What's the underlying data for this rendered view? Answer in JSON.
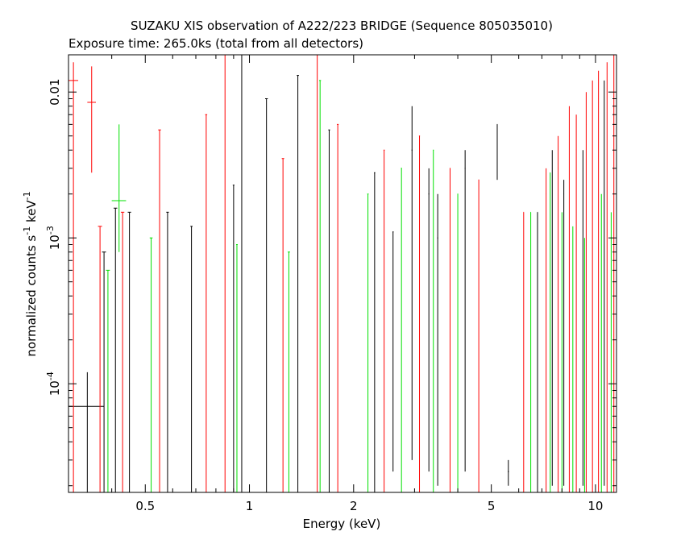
{
  "chart_data": {
    "type": "scatter",
    "title": "SUZAKU XIS observation of A222/223 BRIDGE (Sequence 805035010)",
    "subtitle": "Exposure time: 265.0ks (total from all detectors)",
    "xlabel": "Energy (keV)",
    "ylabel_main": "normalized counts s",
    "ylabel_sup1": "-1",
    "ylabel_mid": " keV",
    "ylabel_sup2": "-1",
    "x_scale": "log",
    "y_scale": "log",
    "xlim": [
      0.3,
      11.5
    ],
    "ylim": [
      1.8e-05,
      0.018
    ],
    "x_ticks": [
      {
        "value": 0.5,
        "label": "0.5"
      },
      {
        "value": 1,
        "label": "1"
      },
      {
        "value": 2,
        "label": "2"
      },
      {
        "value": 5,
        "label": "5"
      },
      {
        "value": 10,
        "label": "10"
      }
    ],
    "y_ticks": [
      {
        "value": 0.0001,
        "base": "10",
        "exp": "-4"
      },
      {
        "value": 0.001,
        "base": "10",
        "exp": "-3"
      },
      {
        "value": 0.01,
        "base": "0.01",
        "exp": ""
      }
    ],
    "grid": false,
    "legend": "none",
    "series": [
      {
        "color": "#000000",
        "points": [
          {
            "x": 0.34,
            "y": 7e-05,
            "xerr": [
              0.3,
              0.38
            ],
            "yerr": [
              1.8e-05,
              0.00012
            ]
          },
          {
            "x": 0.38,
            "y": 0.0008,
            "xerr": [
              0.375,
              0.385
            ],
            "yerr": [
              1.8e-05,
              0.0008
            ]
          },
          {
            "x": 0.41,
            "y": 0.0016,
            "xerr": [
              0.405,
              0.415
            ],
            "yerr": [
              1.8e-05,
              0.0016
            ]
          },
          {
            "x": 0.45,
            "y": 0.0015,
            "xerr": [
              0.445,
              0.455
            ],
            "yerr": [
              1.8e-05,
              0.0015
            ]
          },
          {
            "x": 0.58,
            "y": 0.0015,
            "xerr": [
              0.575,
              0.585
            ],
            "yerr": [
              1.8e-05,
              0.0015
            ]
          },
          {
            "x": 0.68,
            "y": 0.0012,
            "xerr": [
              0.675,
              0.685
            ],
            "yerr": [
              1.8e-05,
              0.0012
            ]
          },
          {
            "x": 0.9,
            "y": 0.0023,
            "xerr": [
              0.895,
              0.905
            ],
            "yerr": [
              1.8e-05,
              0.0023
            ]
          },
          {
            "x": 0.95,
            "y": 0.018,
            "xerr": [
              0.945,
              0.955
            ],
            "yerr": [
              1.8e-05,
              0.018
            ]
          },
          {
            "x": 1.12,
            "y": 0.009,
            "xerr": [
              1.11,
              1.13
            ],
            "yerr": [
              1.8e-05,
              0.009
            ]
          },
          {
            "x": 1.38,
            "y": 0.013,
            "xerr": [
              1.37,
              1.39
            ],
            "yerr": [
              1.8e-05,
              0.013
            ]
          },
          {
            "x": 1.7,
            "y": 0.0055,
            "xerr": [
              1.69,
              1.71
            ],
            "yerr": [
              1.8e-05,
              0.0055
            ]
          },
          {
            "x": 2.3,
            "y": 0.0028,
            "xerr": [
              2.29,
              2.31
            ],
            "yerr": [
              1.8e-05,
              0.0028
            ]
          },
          {
            "x": 2.6,
            "y": 0.0011,
            "xerr": [
              2.59,
              2.61
            ],
            "yerr": [
              2.5e-05,
              0.0011
            ]
          },
          {
            "x": 2.95,
            "y": 0.004,
            "xerr": [
              2.94,
              2.96
            ],
            "yerr": [
              3e-05,
              0.008
            ]
          },
          {
            "x": 3.3,
            "y": 0.002,
            "xerr": [
              3.29,
              3.31
            ],
            "yerr": [
              2.5e-05,
              0.003
            ]
          },
          {
            "x": 3.5,
            "y": 0.001,
            "xerr": [
              3.49,
              3.51
            ],
            "yerr": [
              2e-05,
              0.002
            ]
          },
          {
            "x": 4.2,
            "y": 0.003,
            "xerr": [
              4.19,
              4.21
            ],
            "yerr": [
              2.5e-05,
              0.004
            ]
          },
          {
            "x": 5.2,
            "y": 0.006,
            "xerr": [
              5.19,
              5.21
            ],
            "yerr": [
              0.0025,
              0.006
            ]
          },
          {
            "x": 5.6,
            "y": 2.5e-05,
            "xerr": [
              5.58,
              5.62
            ],
            "yerr": [
              2e-05,
              3e-05
            ]
          },
          {
            "x": 6.8,
            "y": 0.0015,
            "xerr": [
              6.79,
              6.81
            ],
            "yerr": [
              1.8e-05,
              0.0015
            ]
          },
          {
            "x": 7.5,
            "y": 0.003,
            "xerr": [
              7.49,
              7.51
            ],
            "yerr": [
              2e-05,
              0.004
            ]
          },
          {
            "x": 8.1,
            "y": 0.002,
            "xerr": [
              8.09,
              8.11
            ],
            "yerr": [
              2e-05,
              0.0025
            ]
          },
          {
            "x": 9.2,
            "y": 0.003,
            "xerr": [
              9.19,
              9.21
            ],
            "yerr": [
              2e-05,
              0.004
            ]
          },
          {
            "x": 10.6,
            "y": 0.008,
            "xerr": [
              10.59,
              10.61
            ],
            "yerr": [
              2e-05,
              0.012
            ]
          }
        ]
      },
      {
        "color": "#ff0000",
        "points": [
          {
            "x": 0.31,
            "y": 0.012,
            "xerr": [
              0.3,
              0.32
            ],
            "yerr": [
              1.8e-05,
              0.016
            ]
          },
          {
            "x": 0.35,
            "y": 0.0085,
            "xerr": [
              0.34,
              0.36
            ],
            "yerr": [
              0.0028,
              0.015
            ]
          },
          {
            "x": 0.37,
            "y": 0.0012,
            "xerr": [
              0.365,
              0.375
            ],
            "yerr": [
              1.8e-05,
              0.0012
            ]
          },
          {
            "x": 0.43,
            "y": 0.0015,
            "xerr": [
              0.425,
              0.435
            ],
            "yerr": [
              1.8e-05,
              0.0015
            ]
          },
          {
            "x": 0.55,
            "y": 0.0055,
            "xerr": [
              0.545,
              0.555
            ],
            "yerr": [
              1.8e-05,
              0.0055
            ]
          },
          {
            "x": 0.75,
            "y": 0.007,
            "xerr": [
              0.745,
              0.755
            ],
            "yerr": [
              1.8e-05,
              0.007
            ]
          },
          {
            "x": 0.85,
            "y": 0.018,
            "xerr": [
              0.845,
              0.855
            ],
            "yerr": [
              1.8e-05,
              0.018
            ]
          },
          {
            "x": 1.25,
            "y": 0.0035,
            "xerr": [
              1.24,
              1.26
            ],
            "yerr": [
              1.8e-05,
              0.0035
            ]
          },
          {
            "x": 1.57,
            "y": 0.018,
            "xerr": [
              1.56,
              1.58
            ],
            "yerr": [
              1.8e-05,
              0.018
            ]
          },
          {
            "x": 1.8,
            "y": 0.006,
            "xerr": [
              1.79,
              1.81
            ],
            "yerr": [
              1.8e-05,
              0.006
            ]
          },
          {
            "x": 2.45,
            "y": 0.004,
            "xerr": [
              2.44,
              2.46
            ],
            "yerr": [
              1.8e-05,
              0.004
            ]
          },
          {
            "x": 3.1,
            "y": 0.005,
            "xerr": [
              3.09,
              3.11
            ],
            "yerr": [
              1.8e-05,
              0.005
            ]
          },
          {
            "x": 3.8,
            "y": 0.003,
            "xerr": [
              3.79,
              3.81
            ],
            "yerr": [
              1.8e-05,
              0.003
            ]
          },
          {
            "x": 4.6,
            "y": 0.0025,
            "xerr": [
              4.59,
              4.61
            ],
            "yerr": [
              1.8e-05,
              0.0025
            ]
          },
          {
            "x": 6.2,
            "y": 0.0015,
            "xerr": [
              6.19,
              6.21
            ],
            "yerr": [
              1.8e-05,
              0.0015
            ]
          },
          {
            "x": 7.2,
            "y": 0.002,
            "xerr": [
              7.19,
              7.21
            ],
            "yerr": [
              1.8e-05,
              0.003
            ]
          },
          {
            "x": 7.8,
            "y": 0.003,
            "xerr": [
              7.79,
              7.81
            ],
            "yerr": [
              1.8e-05,
              0.005
            ]
          },
          {
            "x": 8.4,
            "y": 0.005,
            "xerr": [
              8.39,
              8.41
            ],
            "yerr": [
              1.8e-05,
              0.008
            ]
          },
          {
            "x": 8.8,
            "y": 0.004,
            "xerr": [
              8.79,
              8.81
            ],
            "yerr": [
              1.8e-05,
              0.007
            ]
          },
          {
            "x": 9.4,
            "y": 0.006,
            "xerr": [
              9.39,
              9.41
            ],
            "yerr": [
              1.8e-05,
              0.01
            ]
          },
          {
            "x": 9.8,
            "y": 0.007,
            "xerr": [
              9.79,
              9.81
            ],
            "yerr": [
              1.8e-05,
              0.012
            ]
          },
          {
            "x": 10.2,
            "y": 0.009,
            "xerr": [
              10.19,
              10.21
            ],
            "yerr": [
              1.8e-05,
              0.014
            ]
          },
          {
            "x": 10.8,
            "y": 0.01,
            "xerr": [
              10.79,
              10.81
            ],
            "yerr": [
              1.8e-05,
              0.016
            ]
          },
          {
            "x": 11.3,
            "y": 0.012,
            "xerr": [
              11.29,
              11.31
            ],
            "yerr": [
              1.8e-05,
              0.018
            ]
          }
        ]
      },
      {
        "color": "#00e000",
        "points": [
          {
            "x": 0.39,
            "y": 0.0006,
            "xerr": [
              0.385,
              0.395
            ],
            "yerr": [
              1.8e-05,
              0.0006
            ]
          },
          {
            "x": 0.42,
            "y": 0.0018,
            "xerr": [
              0.4,
              0.44
            ],
            "yerr": [
              0.0008,
              0.006
            ]
          },
          {
            "x": 0.52,
            "y": 0.001,
            "xerr": [
              0.515,
              0.525
            ],
            "yerr": [
              1.8e-05,
              0.001
            ]
          },
          {
            "x": 0.92,
            "y": 0.0009,
            "xerr": [
              0.915,
              0.925
            ],
            "yerr": [
              1.8e-05,
              0.0009
            ]
          },
          {
            "x": 1.3,
            "y": 0.0008,
            "xerr": [
              1.29,
              1.31
            ],
            "yerr": [
              1.8e-05,
              0.0008
            ]
          },
          {
            "x": 1.6,
            "y": 0.012,
            "xerr": [
              1.59,
              1.61
            ],
            "yerr": [
              1.8e-05,
              0.012
            ]
          },
          {
            "x": 2.2,
            "y": 0.002,
            "xerr": [
              2.19,
              2.21
            ],
            "yerr": [
              1.8e-05,
              0.002
            ]
          },
          {
            "x": 2.75,
            "y": 0.003,
            "xerr": [
              2.74,
              2.76
            ],
            "yerr": [
              1.8e-05,
              0.003
            ]
          },
          {
            "x": 3.4,
            "y": 0.004,
            "xerr": [
              3.39,
              3.41
            ],
            "yerr": [
              1.8e-05,
              0.004
            ]
          },
          {
            "x": 4.0,
            "y": 0.002,
            "xerr": [
              3.99,
              4.01
            ],
            "yerr": [
              1.8e-05,
              0.002
            ]
          },
          {
            "x": 6.5,
            "y": 0.0015,
            "xerr": [
              6.49,
              6.51
            ],
            "yerr": [
              1.8e-05,
              0.0015
            ]
          },
          {
            "x": 7.4,
            "y": 0.0028,
            "xerr": [
              7.39,
              7.41
            ],
            "yerr": [
              1.8e-05,
              0.0028
            ]
          },
          {
            "x": 8.0,
            "y": 0.0008,
            "xerr": [
              7.99,
              8.01
            ],
            "yerr": [
              1.8e-05,
              0.0015
            ]
          },
          {
            "x": 8.6,
            "y": 0.0006,
            "xerr": [
              8.59,
              8.61
            ],
            "yerr": [
              1.8e-05,
              0.0012
            ]
          },
          {
            "x": 9.3,
            "y": 0.0004,
            "xerr": [
              9.29,
              9.31
            ],
            "yerr": [
              1.8e-05,
              0.001
            ]
          },
          {
            "x": 10.4,
            "y": 0.0008,
            "xerr": [
              10.39,
              10.41
            ],
            "yerr": [
              1.8e-05,
              0.002
            ]
          },
          {
            "x": 11.1,
            "y": 0.0006,
            "xerr": [
              11.09,
              11.11
            ],
            "yerr": [
              1.8e-05,
              0.0015
            ]
          }
        ]
      }
    ]
  }
}
